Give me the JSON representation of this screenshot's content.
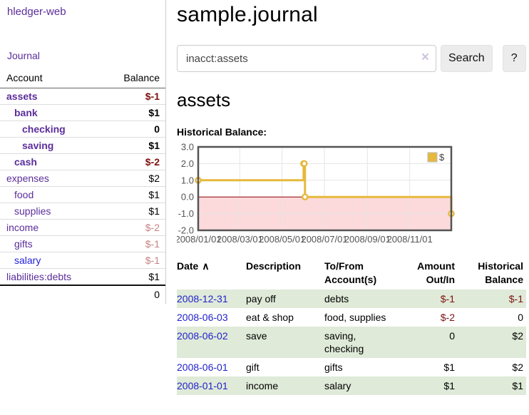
{
  "sidebar": {
    "brand": "hledger-web",
    "journal_link": "Journal",
    "accounts": {
      "col_account": "Account",
      "col_balance": "Balance",
      "rows": [
        {
          "name": "assets",
          "indent": 0,
          "strong": true,
          "balance": "$-1"
        },
        {
          "name": "bank",
          "indent": 1,
          "strong": true,
          "balance": "$1"
        },
        {
          "name": "checking",
          "indent": 2,
          "strong": true,
          "balance": "0"
        },
        {
          "name": "saving",
          "indent": 2,
          "strong": true,
          "balance": "$1"
        },
        {
          "name": "cash",
          "indent": 1,
          "strong": true,
          "balance": "$-2"
        },
        {
          "name": "expenses",
          "indent": 0,
          "strong": false,
          "balance": "$2"
        },
        {
          "name": "food",
          "indent": 1,
          "strong": false,
          "balance": "$1"
        },
        {
          "name": "supplies",
          "indent": 1,
          "strong": false,
          "balance": "$1"
        },
        {
          "name": "income",
          "indent": 0,
          "strong": false,
          "balance": "$-2"
        },
        {
          "name": "gifts",
          "indent": 1,
          "strong": false,
          "balance": "$-1"
        },
        {
          "name": "salary",
          "indent": 1,
          "strong": false,
          "blue": true,
          "balance": "$-1"
        },
        {
          "name": "liabilities:debts",
          "indent": 0,
          "strong": false,
          "balance": "$1"
        }
      ],
      "total": "0"
    }
  },
  "main": {
    "title": "sample.journal",
    "search": {
      "value": "inacct:assets",
      "clear_icon": "×",
      "search_button": "Search",
      "help_button": "?"
    },
    "account_heading": "assets",
    "chart_heading": "Historical Balance:"
  },
  "chart_data": {
    "type": "line",
    "title": "Historical Balance",
    "step": true,
    "legend": [
      {
        "label": "$",
        "color": "#e6b93c"
      }
    ],
    "legend_position": "top-right",
    "grid": true,
    "xlim": [
      "2008-01-01",
      "2008-12-31"
    ],
    "ylim": [
      -2.0,
      3.0
    ],
    "points": [
      {
        "date": "2008-01-01",
        "value": 1.0
      },
      {
        "date": "2008-06-01",
        "value": 2.0
      },
      {
        "date": "2008-06-02",
        "value": 2.0
      },
      {
        "date": "2008-06-03",
        "value": 0.0
      },
      {
        "date": "2008-12-31",
        "value": -1.0
      }
    ],
    "y_ticks": [
      {
        "value": 3,
        "label": "3.0"
      },
      {
        "value": 2,
        "label": "2.0"
      },
      {
        "value": 1,
        "label": "1.0"
      },
      {
        "value": 0,
        "label": "0.0"
      },
      {
        "value": -1,
        "label": "-1.0"
      },
      {
        "value": -2,
        "label": "-2.0"
      }
    ],
    "x_ticks": [
      {
        "date": "2008-01-01",
        "label": "2008/01/01"
      },
      {
        "date": "2008-03-01",
        "label": "2008/03/01"
      },
      {
        "date": "2008-05-01",
        "label": "2008/05/01"
      },
      {
        "date": "2008-07-01",
        "label": "2008/07/01"
      },
      {
        "date": "2008-09-01",
        "label": "2008/09/01"
      },
      {
        "date": "2008-11-01",
        "label": "2008/11/01"
      }
    ],
    "negative_region_shaded": true
  },
  "register": {
    "headers": [
      "Date",
      "Description",
      "To/From Account(s)",
      "Amount Out/In",
      "Historical Balance"
    ],
    "sort_indicator": "∧",
    "rows": [
      {
        "date": "2008-12-31",
        "description": "pay off",
        "accounts": "debts",
        "amount": "$-1",
        "balance": "$-1"
      },
      {
        "date": "2008-06-03",
        "description": "eat & shop",
        "accounts": "food, supplies",
        "amount": "$-2",
        "balance": "0"
      },
      {
        "date": "2008-06-02",
        "description": "save",
        "accounts": "saving, checking",
        "amount": "0",
        "balance": "$2"
      },
      {
        "date": "2008-06-01",
        "description": "gift",
        "accounts": "gifts",
        "amount": "$1",
        "balance": "$2"
      },
      {
        "date": "2008-01-01",
        "description": "income",
        "accounts": "salary",
        "amount": "$1",
        "balance": "$1"
      }
    ]
  },
  "colors": {
    "brand_purple": "#5b2d9b",
    "link_blue": "#2222cc",
    "negative_strong": "#7d1010",
    "negative_soft": "#c88282",
    "row_stripe_green": "#dfead8",
    "chart_line_gold": "#e6b93c",
    "chart_negative_fill": "#fcd9db",
    "chart_zero_line": "#8b0000",
    "chart_border": "#545454",
    "chart_grid": "#e6e6e6"
  }
}
